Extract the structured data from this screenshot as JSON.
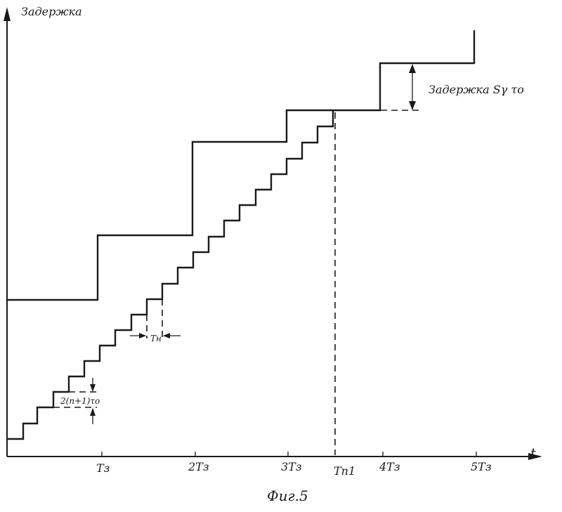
{
  "axes": {
    "y_label": "Задержка",
    "x_label": "t",
    "x_ticks": [
      "Tз",
      "2Tз",
      "3Tз",
      "Tп1",
      "4Tз",
      "5Tз"
    ]
  },
  "annotations": {
    "top_delay": "Задержка Sγ τo",
    "step_width": "Tн",
    "step_height": "2(n+1)τo"
  },
  "caption": "Фиг.5"
}
